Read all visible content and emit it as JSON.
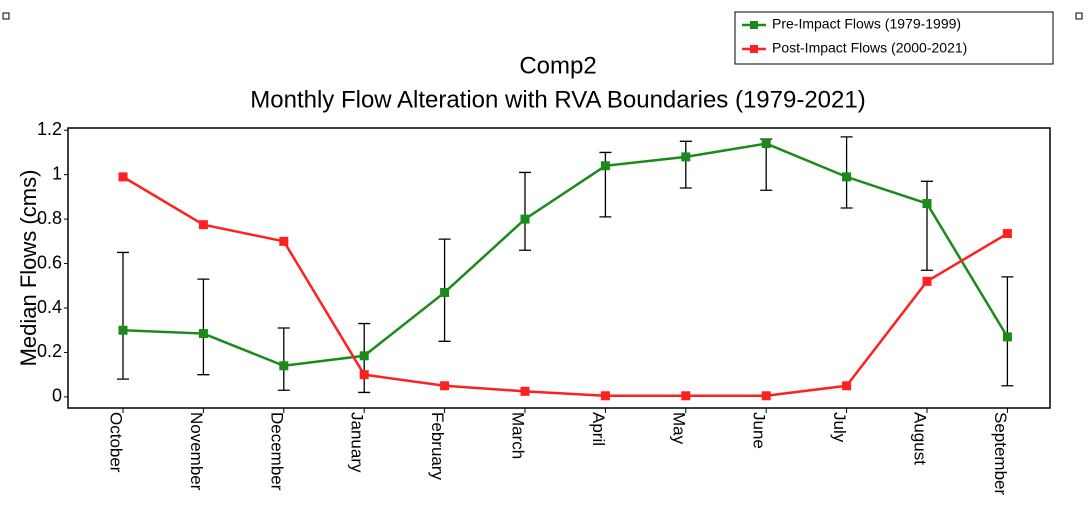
{
  "chart_data": {
    "type": "line",
    "title": "Comp2",
    "subtitle": "Monthly Flow Alteration with RVA Boundaries (1979-2021)",
    "y_label": "Median Flows (cms)",
    "categories": [
      "October",
      "November",
      "December",
      "January",
      "February",
      "March",
      "April",
      "May",
      "June",
      "July",
      "August",
      "September"
    ],
    "series": [
      {
        "name": "Pre-Impact Flows (1979-1999)",
        "color": "#1a8a1a",
        "values": [
          0.3,
          0.285,
          0.14,
          0.185,
          0.47,
          0.8,
          1.04,
          1.08,
          1.14,
          0.99,
          0.87,
          0.27
        ],
        "lower": [
          0.08,
          0.1,
          0.03,
          0.02,
          0.25,
          0.66,
          0.81,
          0.94,
          0.93,
          0.85,
          0.57,
          0.05
        ],
        "upper": [
          0.65,
          0.53,
          0.31,
          0.33,
          0.71,
          1.01,
          1.1,
          1.15,
          1.16,
          1.17,
          0.97,
          0.54
        ]
      },
      {
        "name": "Post-Impact Flows (2000-2021)",
        "color": "#ff2020",
        "values": [
          0.99,
          0.775,
          0.7,
          0.1,
          0.05,
          0.025,
          0.005,
          0.005,
          0.005,
          0.05,
          0.52,
          0.735
        ]
      }
    ],
    "ylim": [
      -0.05,
      1.21
    ],
    "yticks": [
      0,
      0.2,
      0.4,
      0.6,
      0.8,
      1,
      1.2
    ],
    "legend": "upper right"
  }
}
